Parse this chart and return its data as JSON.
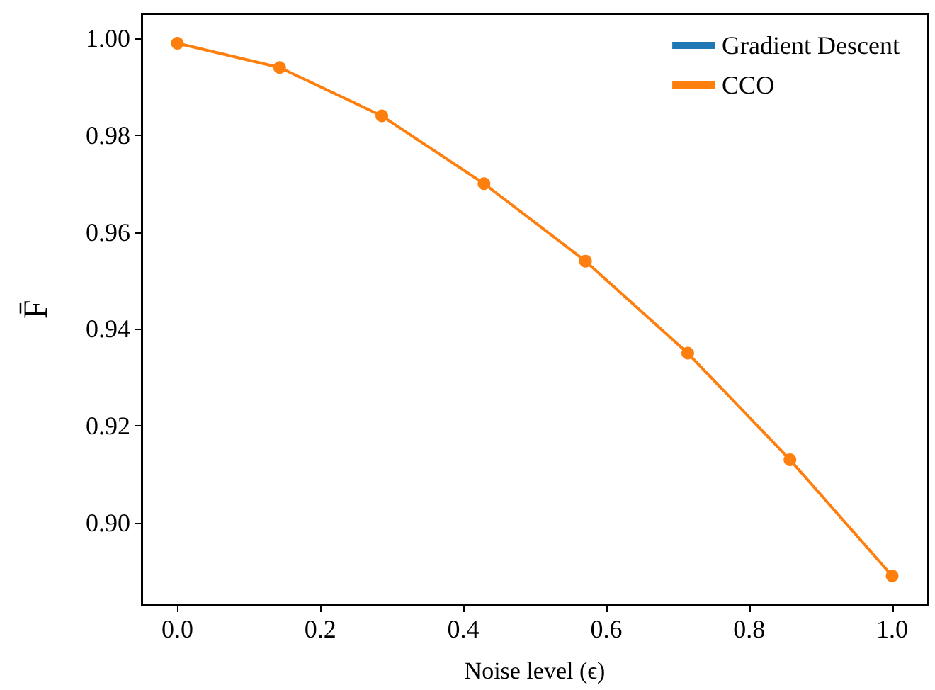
{
  "chart_data": {
    "type": "line",
    "xlabel": "Noise level (ϵ)",
    "ylabel": "F̄",
    "x": [
      0,
      0.143,
      0.286,
      0.429,
      0.571,
      0.714,
      0.857,
      1.0
    ],
    "series": [
      {
        "name": "Gradient Descent",
        "color": "#1f77b4",
        "values": [
          null,
          null,
          null,
          null,
          null,
          null,
          null,
          null
        ]
      },
      {
        "name": "CCO",
        "color": "#ff7f0e",
        "values": [
          0.999,
          0.994,
          0.984,
          0.97,
          0.954,
          0.935,
          0.913,
          0.889
        ]
      }
    ],
    "xlim": [
      -0.05,
      1.05
    ],
    "ylim": [
      0.883,
      1.005
    ],
    "xticks": [
      {
        "value": 0,
        "label": "0.0"
      },
      {
        "value": 0.2,
        "label": "0.2"
      },
      {
        "value": 0.4,
        "label": "0.4"
      },
      {
        "value": 0.6,
        "label": "0.6"
      },
      {
        "value": 0.8,
        "label": "0.8"
      },
      {
        "value": 1,
        "label": "1.0"
      }
    ],
    "yticks": [
      {
        "value": 0.9,
        "label": "0.90"
      },
      {
        "value": 0.92,
        "label": "0.92"
      },
      {
        "value": 0.94,
        "label": "0.94"
      },
      {
        "value": 0.96,
        "label": "0.96"
      },
      {
        "value": 0.98,
        "label": "0.98"
      },
      {
        "value": 1,
        "label": "1.00"
      }
    ],
    "grid": false,
    "legend": "top right",
    "marker": "circle",
    "line_style": "solid"
  }
}
